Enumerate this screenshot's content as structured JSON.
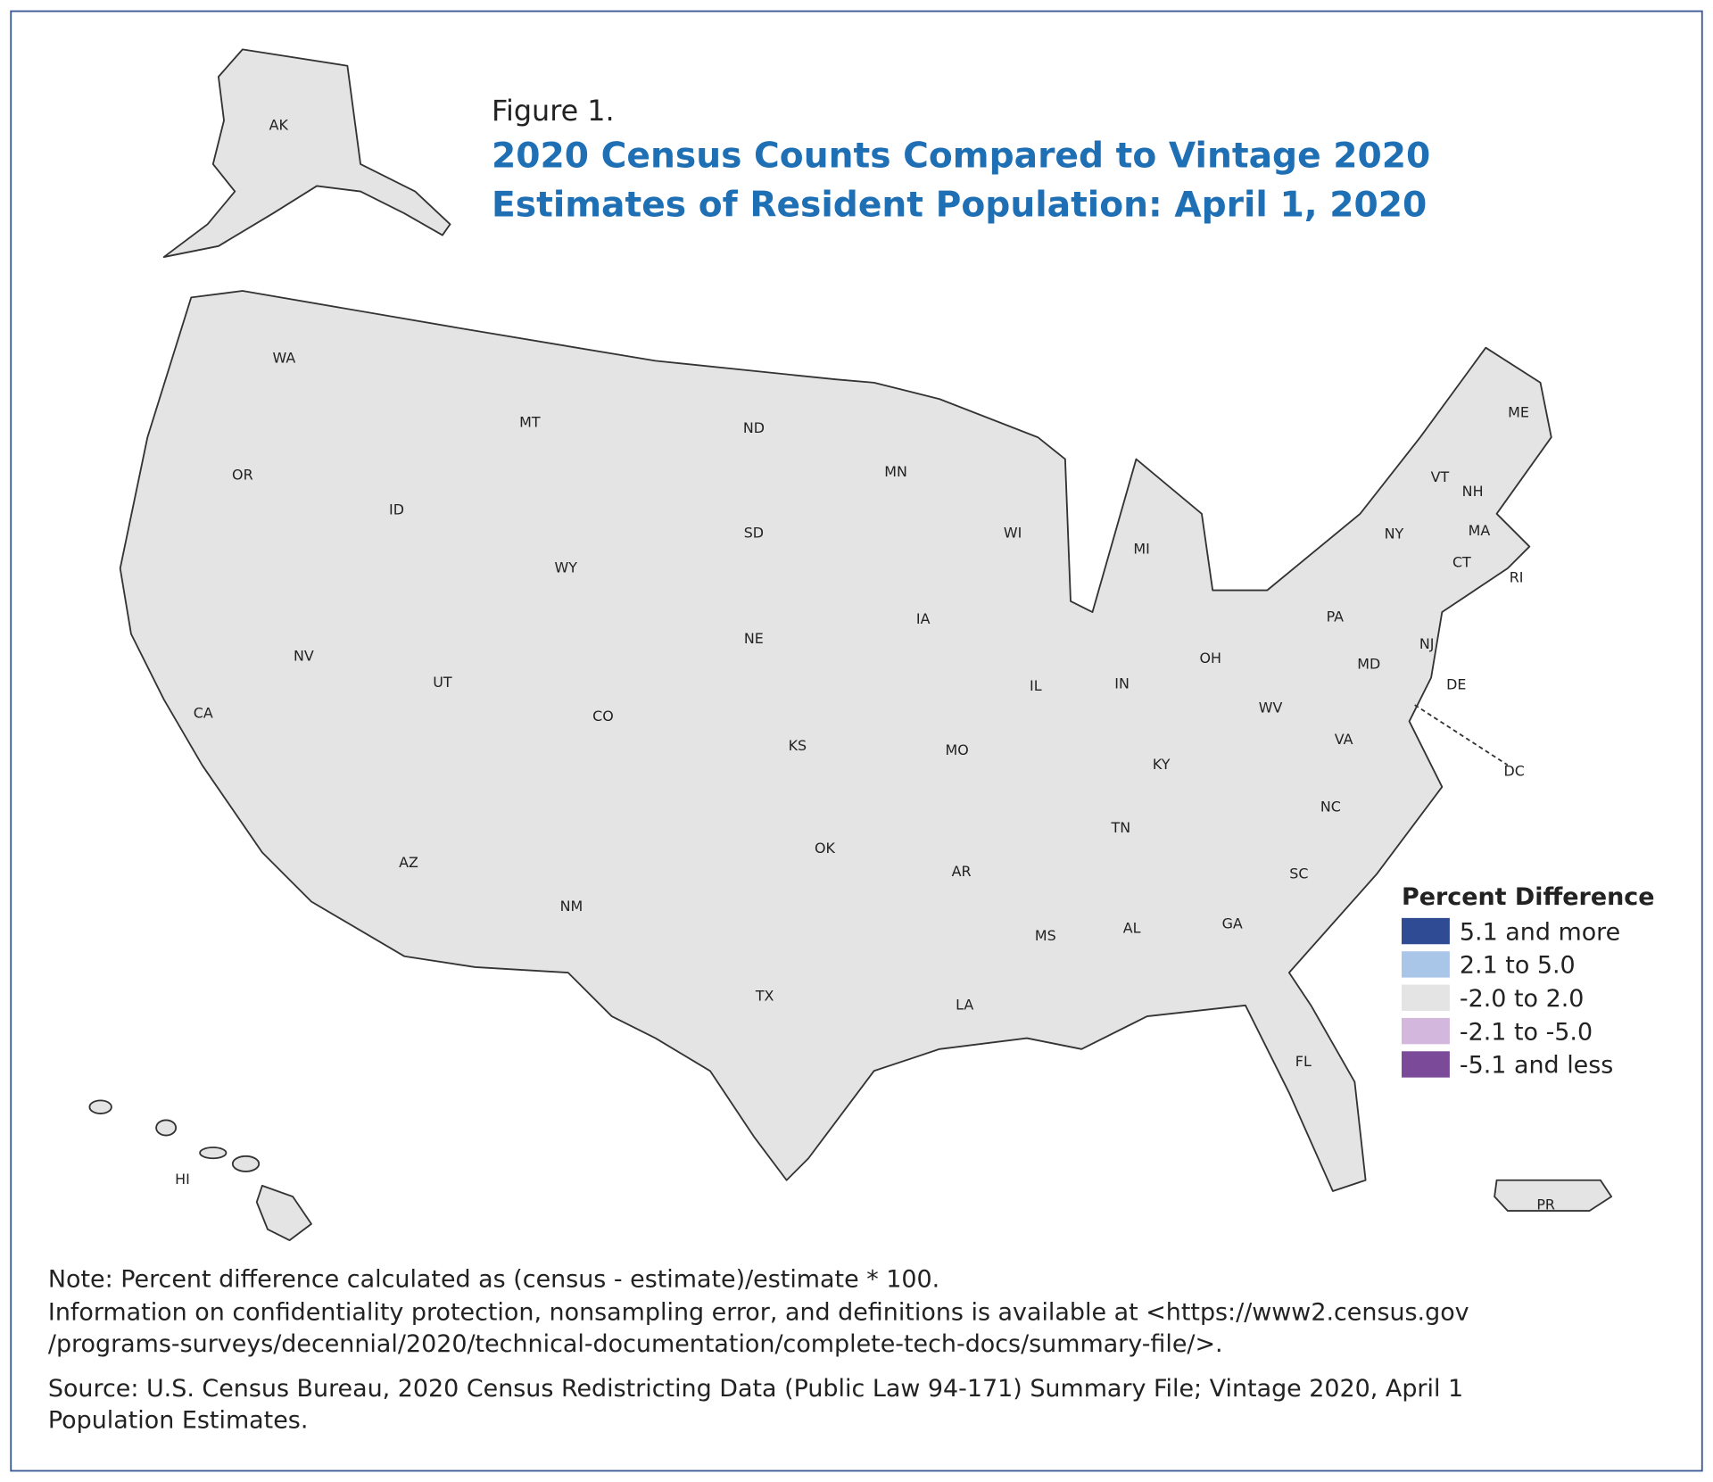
{
  "header": {
    "figure": "Figure 1.",
    "title_lines": [
      "2020 Census Counts Compared to Vintage 2020",
      "Estimates of Resident Population: April 1, 2020"
    ]
  },
  "map": {
    "state_labels": [
      "AK",
      "WA",
      "OR",
      "MT",
      "ID",
      "WY",
      "ND",
      "SD",
      "MN",
      "NE",
      "IA",
      "WI",
      "MI",
      "IL",
      "IN",
      "OH",
      "PA",
      "NY",
      "VT",
      "NH",
      "ME",
      "MA",
      "CT",
      "RI",
      "NJ",
      "DE",
      "MD",
      "DC",
      "WV",
      "VA",
      "KY",
      "TN",
      "NC",
      "SC",
      "GA",
      "FL",
      "AL",
      "MS",
      "LA",
      "AR",
      "MO",
      "KS",
      "CO",
      "UT",
      "NV",
      "CA",
      "AZ",
      "NM",
      "OK",
      "TX",
      "HI",
      "PR"
    ]
  },
  "legend": {
    "title": "Percent Difference",
    "items": [
      {
        "label": "5.1 and more",
        "color": "#2f4b93"
      },
      {
        "label": "2.1 to 5.0",
        "color": "#a9c6e8"
      },
      {
        "label": "-2.0 to 2.0",
        "color": "#e4e4e4"
      },
      {
        "label": "-2.1 to -5.0",
        "color": "#d3b7dc"
      },
      {
        "label": "-5.1 and less",
        "color": "#7b4b9a"
      }
    ]
  },
  "notes": [
    "Note: Percent difference calculated as (census - estimate)/estimate * 100.",
    "Information on confidentiality protection, nonsampling error, and definitions is available at <https://www2.census.gov",
    "/programs-surveys/decennial/2020/technical-documentation/complete-tech-docs/summary-file/>.",
    "Source: U.S. Census Bureau, 2020 Census Redistricting Data (Public Law 94-171) Summary File; Vintage 2020, April 1",
    "Population Estimates."
  ]
}
